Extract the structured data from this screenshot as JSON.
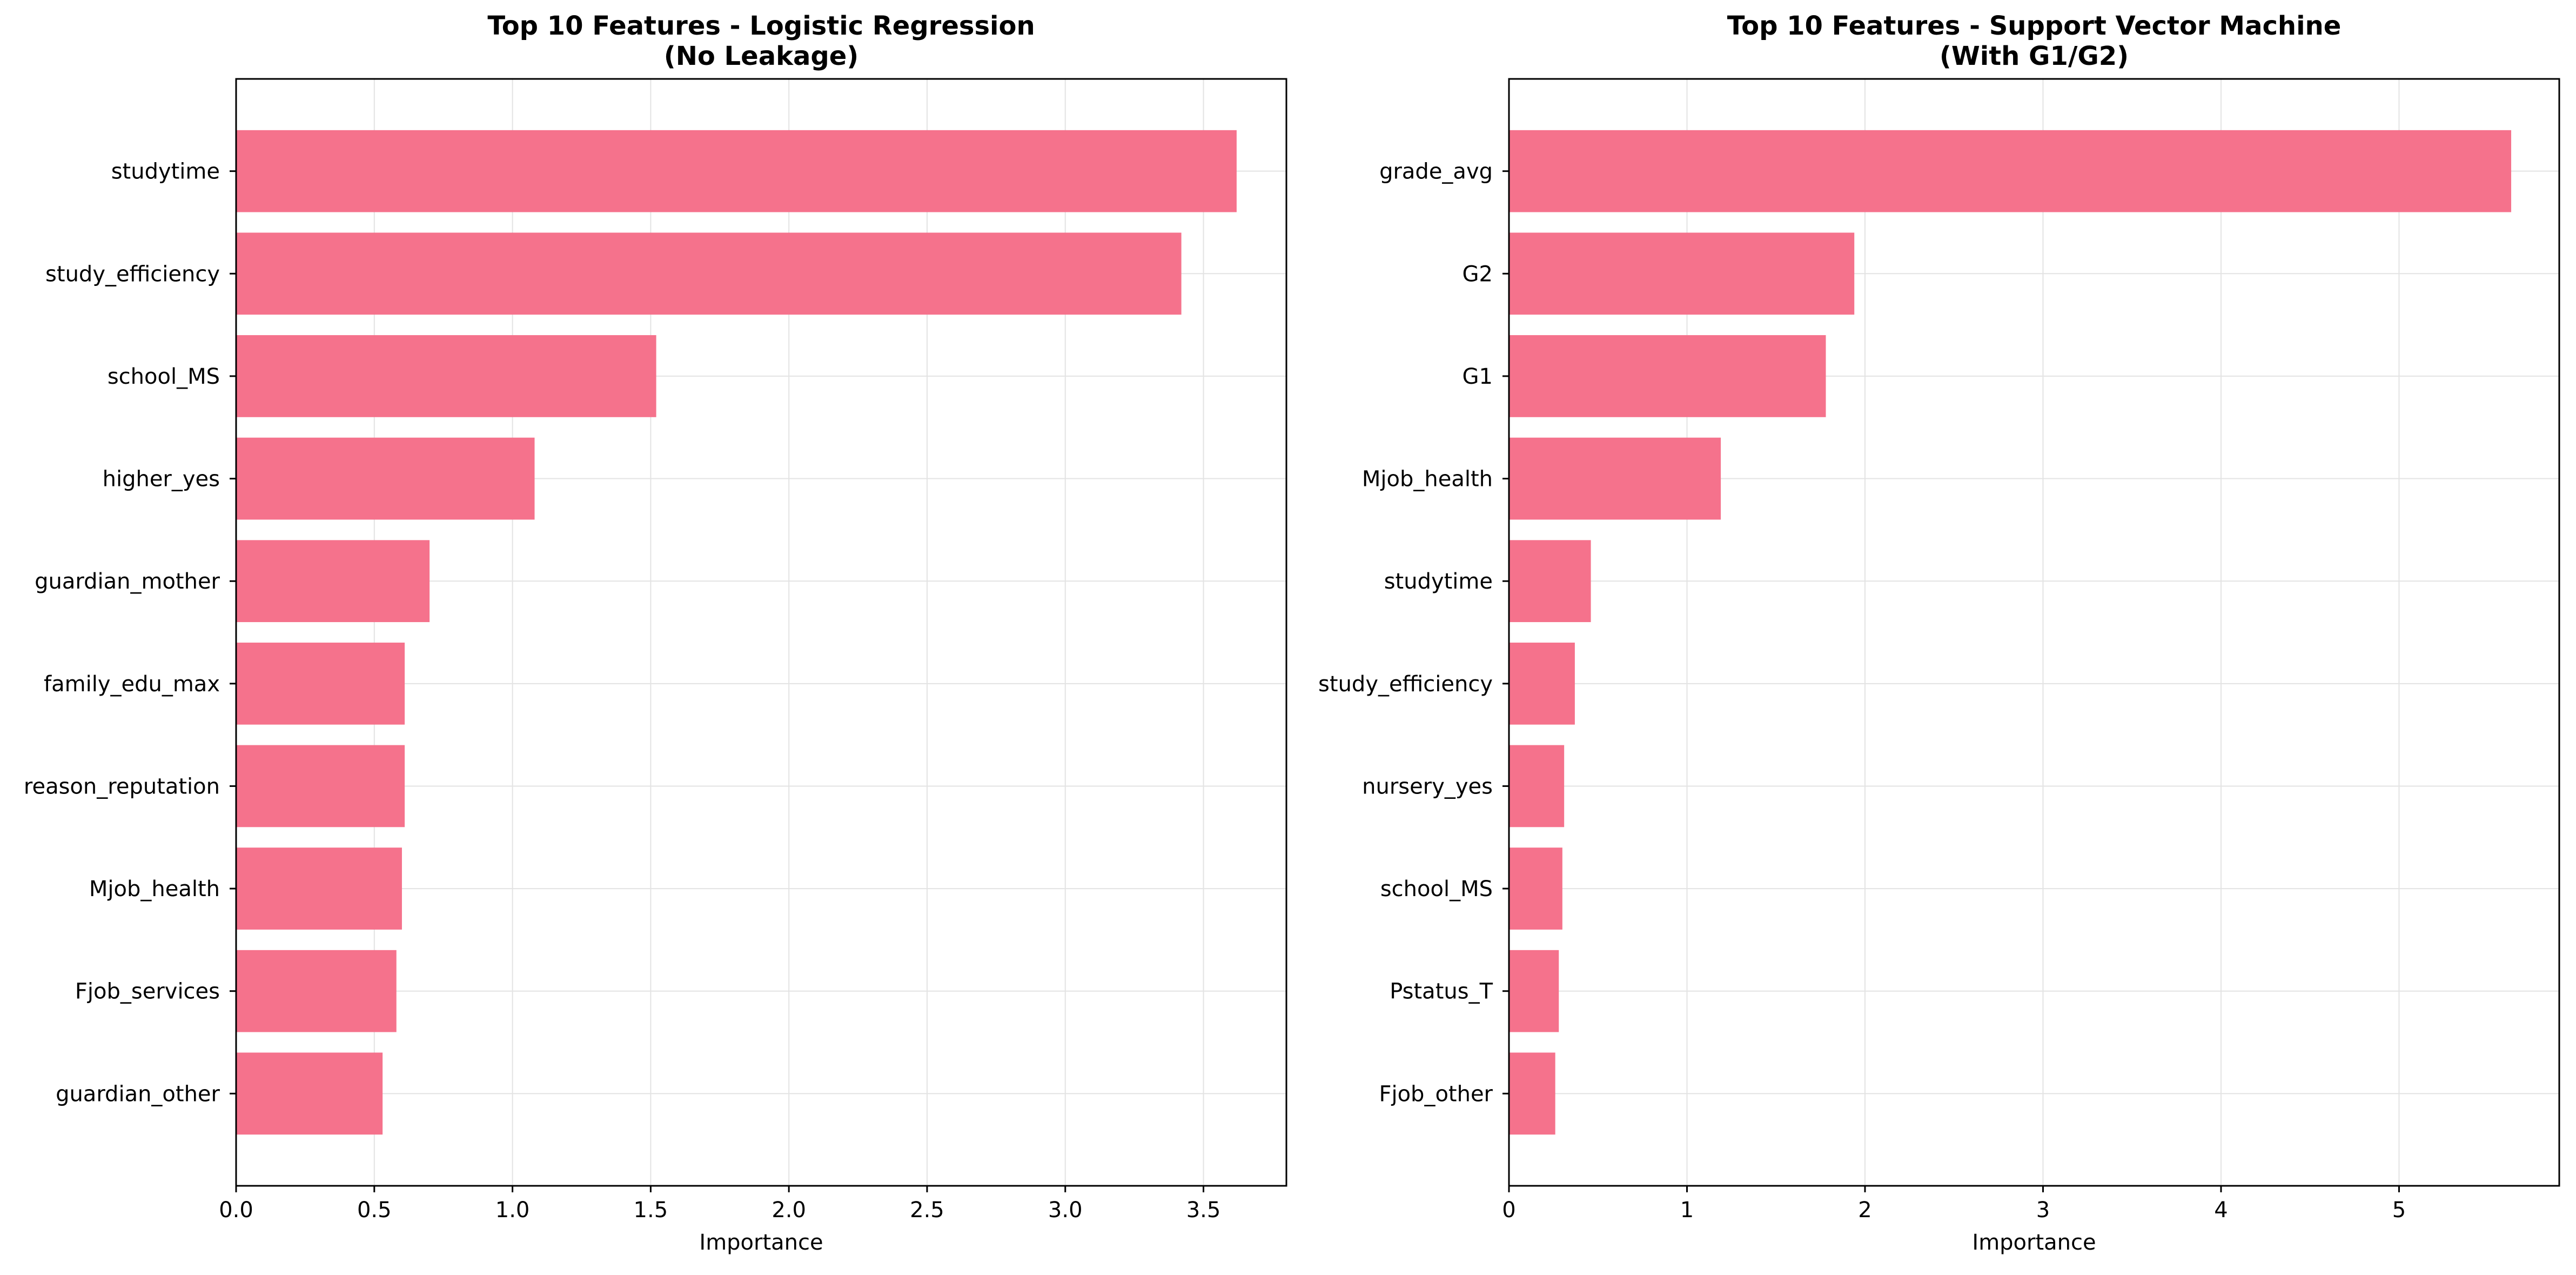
{
  "chart_data": [
    {
      "type": "bar",
      "orientation": "horizontal",
      "title": "Top 10 Features - Logistic Regression\n(No Leakage)",
      "xlabel": "Importance",
      "ylabel": "",
      "xlim": [
        0,
        3.8
      ],
      "xticks": [
        "0.0",
        "0.5",
        "1.0",
        "1.5",
        "2.0",
        "2.5",
        "3.0",
        "3.5"
      ],
      "xtick_values": [
        0,
        0.5,
        1.0,
        1.5,
        2.0,
        2.5,
        3.0,
        3.5
      ],
      "grid": true,
      "categories": [
        "studytime",
        "study_efficiency",
        "school_MS",
        "higher_yes",
        "guardian_mother",
        "family_edu_max",
        "reason_reputation",
        "Mjob_health",
        "Fjob_services",
        "guardian_other"
      ],
      "values": [
        3.62,
        3.42,
        1.52,
        1.08,
        0.7,
        0.61,
        0.61,
        0.6,
        0.58,
        0.53
      ],
      "color": "#f5728c"
    },
    {
      "type": "bar",
      "orientation": "horizontal",
      "title": "Top 10 Features - Support Vector Machine\n(With G1/G2)",
      "xlabel": "Importance",
      "ylabel": "",
      "xlim": [
        0,
        5.9
      ],
      "xticks": [
        "0",
        "1",
        "2",
        "3",
        "4",
        "5"
      ],
      "xtick_values": [
        0,
        1,
        2,
        3,
        4,
        5
      ],
      "grid": true,
      "categories": [
        "grade_avg",
        "G2",
        "G1",
        "Mjob_health",
        "studytime",
        "study_efficiency",
        "nursery_yes",
        "school_MS",
        "Pstatus_T",
        "Fjob_other"
      ],
      "values": [
        5.63,
        1.94,
        1.78,
        1.19,
        0.46,
        0.37,
        0.31,
        0.3,
        0.28,
        0.26
      ],
      "color": "#f5728c"
    }
  ]
}
